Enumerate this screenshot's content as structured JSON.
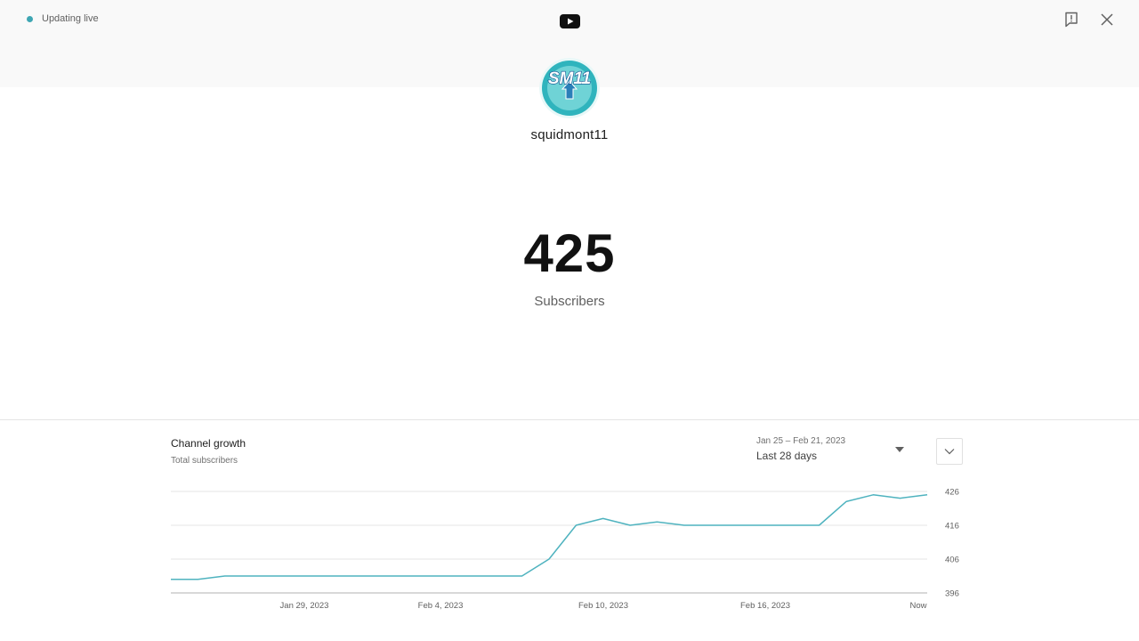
{
  "header": {
    "live_status": "Updating live",
    "live_color": "#3ea6b3",
    "logo_icon": "youtube-logo-icon",
    "report_icon": "report-flag-icon",
    "close_icon": "close-icon"
  },
  "channel": {
    "name": "squidmont11",
    "avatar_text": "SM11"
  },
  "stats": {
    "subscriber_count": "425",
    "subscriber_label": "Subscribers"
  },
  "growth": {
    "title": "Channel growth",
    "subtitle": "Total subscribers",
    "range_dates": "Jan 25 – Feb 21, 2023",
    "range_label": "Last 28 days",
    "expand_icon": "chevron-down-icon"
  },
  "chart_data": {
    "type": "line",
    "color": "#4fb3bf",
    "x_tick_labels": [
      "Jan 29, 2023",
      "Feb 4, 2023",
      "Feb 10, 2023",
      "Feb 16, 2023",
      "Now"
    ],
    "y_tick_labels": [
      "426",
      "416",
      "406",
      "396"
    ],
    "ylim": [
      396,
      426
    ],
    "grid": true,
    "series": [
      {
        "values": [
          400,
          400,
          401,
          401,
          401,
          401,
          401,
          401,
          401,
          401,
          401,
          401,
          401,
          401,
          406,
          416,
          418,
          416,
          417,
          416,
          416,
          416,
          416,
          416,
          416,
          423,
          425,
          424,
          425
        ]
      }
    ]
  }
}
